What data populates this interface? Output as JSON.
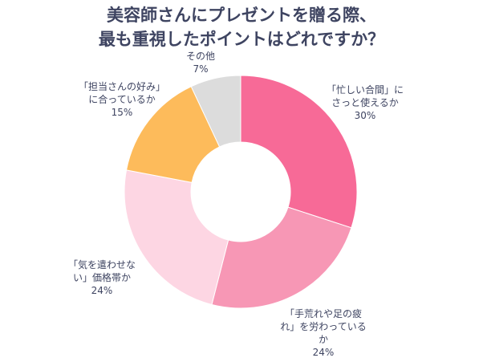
{
  "chart_data": {
    "type": "pie",
    "donut": true,
    "title": [
      "美容師さんにプレゼントを贈る際、",
      "最も重視したポイントはどれですか？"
    ],
    "slices": [
      {
        "label": "「忙しい合間」に\nさっと使えるか",
        "value": 30,
        "value_label": "30%",
        "color": "#f76a97"
      },
      {
        "label": "「手荒れや足の疲\nれ」を労わっている\nか",
        "value": 24,
        "value_label": "24%",
        "color": "#f797b5"
      },
      {
        "label": "「気を遣わせな\nい」価格帯か",
        "value": 24,
        "value_label": "24%",
        "color": "#fdd6e3"
      },
      {
        "label": "「担当さんの好み」\nに合っているか",
        "value": 15,
        "value_label": "15%",
        "color": "#fdbb5b"
      },
      {
        "label": "その他",
        "value": 7,
        "value_label": "7%",
        "color": "#dcdcdc"
      }
    ]
  }
}
